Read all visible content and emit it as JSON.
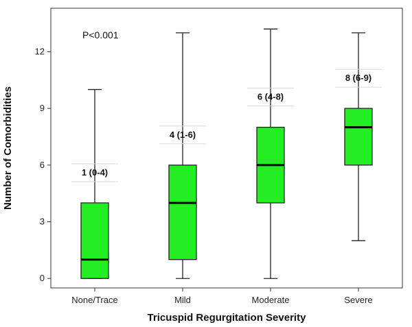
{
  "chart_data": {
    "type": "box",
    "title": "",
    "xlabel": "Tricuspid Regurgitation Severity",
    "ylabel": "Number of Comorbidities",
    "ylim": [
      -0.5,
      14.3
    ],
    "yticks": [
      0,
      3,
      6,
      9,
      12
    ],
    "grid": false,
    "annotation": "P<0.001",
    "box_color": "#22ee22",
    "categories": [
      "None/Trace",
      "Mild",
      "Moderate",
      "Severe"
    ],
    "boxes": [
      {
        "category": "None/Trace",
        "min": 0,
        "q1": 0,
        "median": 1,
        "q3": 4,
        "max": 10,
        "label": "1 (0-4)"
      },
      {
        "category": "Mild",
        "min": 0,
        "q1": 1,
        "median": 4,
        "q3": 6,
        "max": 13,
        "label": "4 (1-6)"
      },
      {
        "category": "Moderate",
        "min": 0,
        "q1": 4,
        "median": 6,
        "q3": 8,
        "max": 13.2,
        "label": "6 (4-8)"
      },
      {
        "category": "Severe",
        "min": 2,
        "q1": 6,
        "median": 8,
        "q3": 9,
        "max": 13,
        "label": "8 (6-9)"
      }
    ]
  }
}
